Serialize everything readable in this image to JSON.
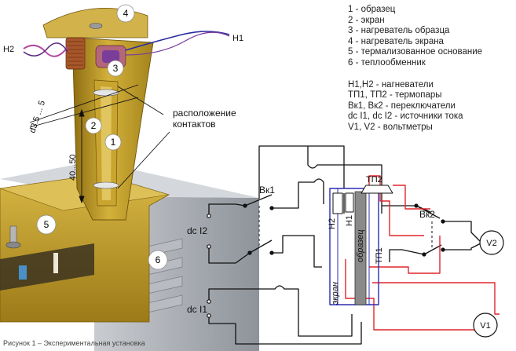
{
  "legend_parts": [
    "1 - образец",
    "2 - экран",
    "3 - нагреватель образца",
    "4 - нагреватель экрана",
    "5 - термализованное основание",
    "6 - теплообменник"
  ],
  "legend_symbols": [
    "H1,H2 - нагневатели",
    "ТП1, ТП2 - термопары",
    "Вк1, Вк2 - переключатели",
    "dc I1, dc I2 - источники тока",
    "V1, V2 - вольтметры"
  ],
  "drawing": {
    "marker_1": "1",
    "marker_2": "2",
    "marker_3": "3",
    "marker_4": "4",
    "marker_5": "5",
    "marker_6": "6",
    "wire_h1": "H1",
    "wire_h2": "H2",
    "dim_thickness": "d3.5 ... 5",
    "dim_length": "40...50",
    "contacts_label_line1": "расположение",
    "contacts_label_line2": "контактов"
  },
  "schematic": {
    "switch_1": "Вк1",
    "switch_2": "Вк2",
    "source_2": "dc I2",
    "source_1": "dc I1",
    "heater_2": "H2",
    "heater_1": "H1",
    "sample": "образец",
    "screen": "экран",
    "thermocouple_2": "ТП2",
    "thermocouple_1": "ТП1",
    "voltmeter_2": "V2",
    "voltmeter_1": "V1"
  },
  "caption": "Рисунок 1 – Экспериментальная установка",
  "colors": {
    "gold": "#c8a12a",
    "gold_dark": "#8d6d12",
    "steel": "#9aa0a8",
    "wire_black": "#111111",
    "wire_red": "#e0252a",
    "wire_blue": "#2b2bb0",
    "sample_gray": "#8a8a8a"
  }
}
